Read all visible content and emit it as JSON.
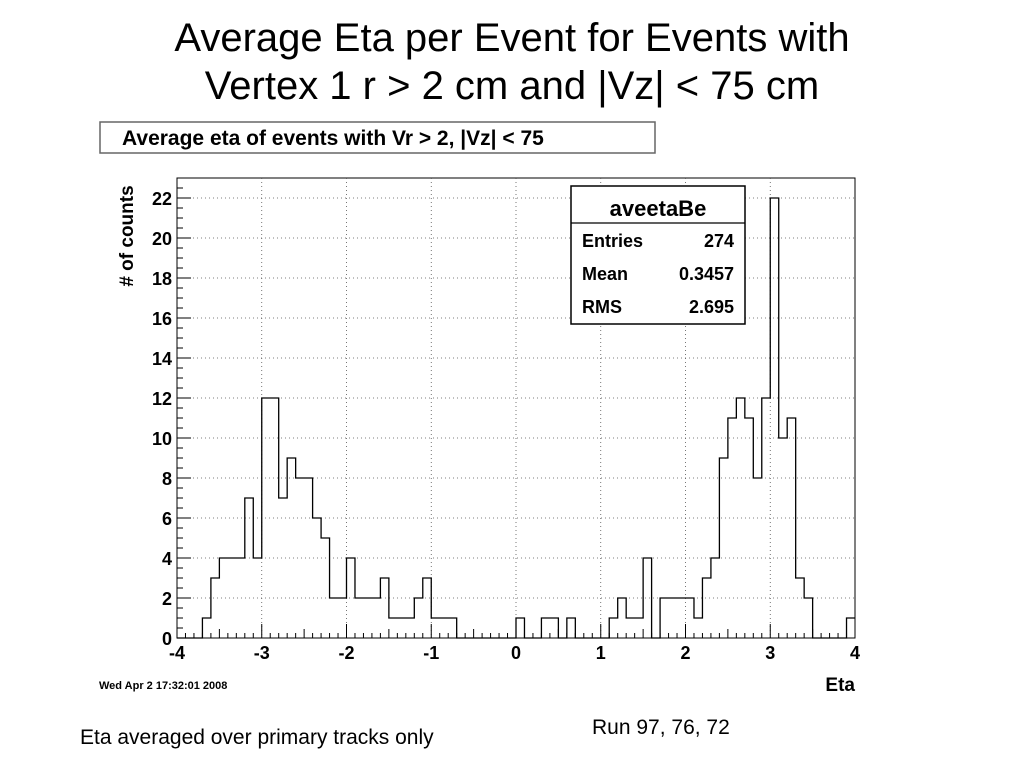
{
  "slide": {
    "title_line1": "Average Eta per Event for Events with",
    "title_line2": "Vertex 1 r > 2 cm and |Vz| < 75 cm",
    "caption_left": "Eta averaged over primary tracks only",
    "caption_right": "Run 97, 76, 72"
  },
  "chart_data": {
    "type": "bar",
    "title": "Average eta of events with Vr > 2, |Vz| < 75",
    "xlabel": "Eta",
    "ylabel": "# of counts",
    "xlim": [
      -4,
      4
    ],
    "ylim": [
      0,
      23
    ],
    "bin_width": 0.1,
    "x_ticks": [
      -4,
      -3,
      -2,
      -1,
      0,
      1,
      2,
      3,
      4
    ],
    "y_ticks": [
      0,
      2,
      4,
      6,
      8,
      10,
      12,
      14,
      16,
      18,
      20,
      22
    ],
    "grid": true,
    "line_color": "#000000",
    "stats_box": {
      "name": "aveetaBe",
      "rows": [
        {
          "label": "Entries",
          "value": "274"
        },
        {
          "label": "Mean",
          "value": "0.3457"
        },
        {
          "label": "RMS",
          "value": "2.695"
        }
      ],
      "placement": "top-right"
    },
    "timestamp": "Wed Apr  2 17:32:01 2008",
    "bin_low_edges": [
      -4.0,
      -3.9,
      -3.8,
      -3.7,
      -3.6,
      -3.5,
      -3.4,
      -3.3,
      -3.2,
      -3.1,
      -3.0,
      -2.9,
      -2.8,
      -2.7,
      -2.6,
      -2.5,
      -2.4,
      -2.3,
      -2.2,
      -2.1,
      -2.0,
      -1.9,
      -1.8,
      -1.7,
      -1.6,
      -1.5,
      -1.4,
      -1.3,
      -1.2,
      -1.1,
      -1.0,
      -0.9,
      -0.8,
      -0.7,
      -0.6,
      -0.5,
      -0.4,
      -0.3,
      -0.2,
      -0.1,
      0.0,
      0.1,
      0.2,
      0.3,
      0.4,
      0.5,
      0.6,
      0.7,
      0.8,
      0.9,
      1.0,
      1.1,
      1.2,
      1.3,
      1.4,
      1.5,
      1.6,
      1.7,
      1.8,
      1.9,
      2.0,
      2.1,
      2.2,
      2.3,
      2.4,
      2.5,
      2.6,
      2.7,
      2.8,
      2.9,
      3.0,
      3.1,
      3.2,
      3.3,
      3.4,
      3.5,
      3.6,
      3.7,
      3.8,
      3.9
    ],
    "values": [
      0,
      0,
      0,
      1,
      3,
      4,
      4,
      4,
      7,
      4,
      12,
      12,
      7,
      9,
      8,
      8,
      6,
      5,
      2,
      2,
      4,
      2,
      2,
      2,
      3,
      1,
      1,
      1,
      2,
      3,
      1,
      1,
      1,
      0,
      0,
      0,
      0,
      0,
      0,
      0,
      1,
      0,
      0,
      1,
      1,
      0,
      1,
      0,
      0,
      0,
      0,
      1,
      2,
      1,
      1,
      4,
      0,
      2,
      2,
      2,
      2,
      1,
      3,
      4,
      9,
      11,
      12,
      11,
      8,
      12,
      22,
      10,
      11,
      3,
      2,
      0,
      0,
      0,
      0,
      1
    ]
  }
}
